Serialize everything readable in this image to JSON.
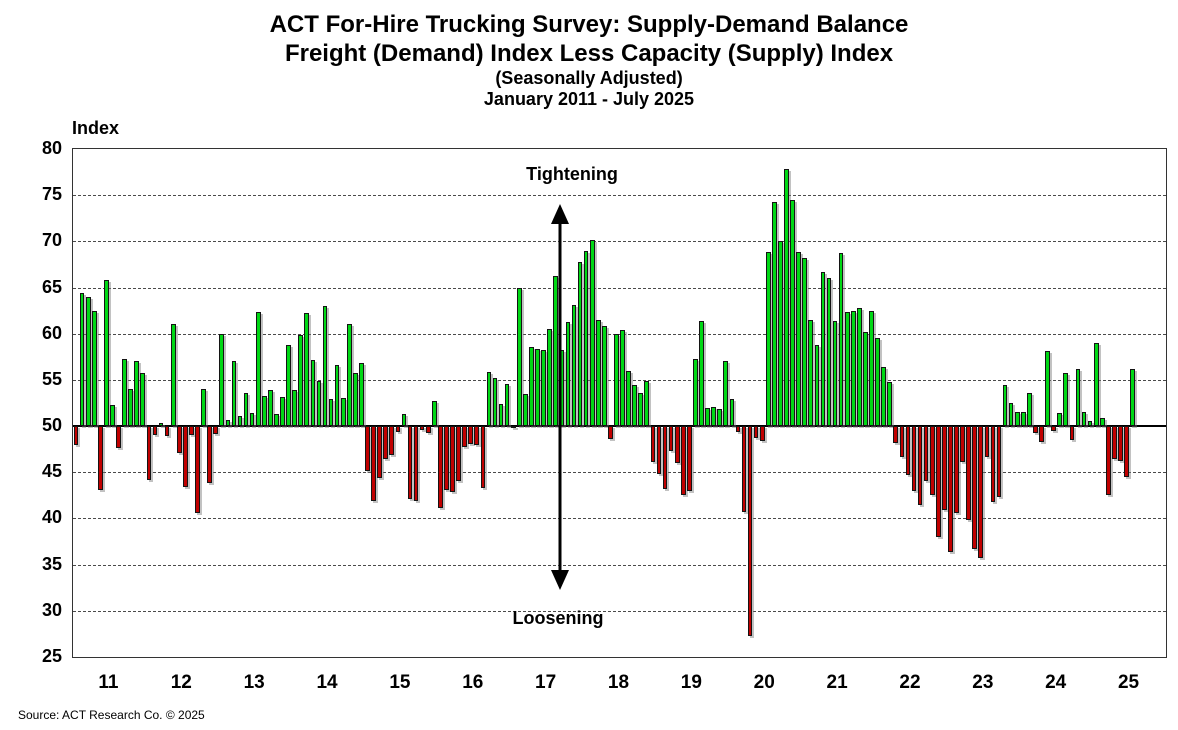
{
  "title": {
    "line1": "ACT For-Hire Trucking Survey: Supply-Demand Balance",
    "line2": "Freight (Demand) Index Less Capacity (Supply) Index",
    "line3": "(Seasonally Adjusted)",
    "line4": "January 2011 - July 2025"
  },
  "index_label": "Index",
  "annotations": {
    "tightening": "Tightening",
    "loosening": "Loosening"
  },
  "source_text": "Source: ACT Research Co. © 2025",
  "chart_data": {
    "type": "bar",
    "title": "ACT For-Hire Trucking Survey: Supply-Demand Balance",
    "subtitle": "Freight (Demand) Index Less Capacity (Supply) Index, Seasonally Adjusted",
    "period": "January 2011 - July 2025",
    "frequency": "monthly",
    "start_month": "2011-01",
    "end_month": "2025-07",
    "baseline": 50,
    "ylim": [
      25,
      80
    ],
    "y_ticks": [
      80,
      75,
      70,
      65,
      60,
      55,
      50,
      45,
      40,
      35,
      30,
      25
    ],
    "x_axis_years": [
      "11",
      "12",
      "13",
      "14",
      "15",
      "16",
      "17",
      "18",
      "19",
      "20",
      "21",
      "22",
      "23",
      "24",
      "25"
    ],
    "x_axis_total_months": 180,
    "grid": "dashed horizontal",
    "positive_color": "#00d815",
    "negative_color": "#c00000",
    "bar_border_color": "#141414",
    "values": [
      48.0,
      64.4,
      64.0,
      62.5,
      43.1,
      65.8,
      52.3,
      47.6,
      57.3,
      54.0,
      57.1,
      55.8,
      44.2,
      49.0,
      50.3,
      48.9,
      61.0,
      47.1,
      43.4,
      49.0,
      40.6,
      54.0,
      43.8,
      49.1,
      60.0,
      50.7,
      57.0,
      51.1,
      53.6,
      51.4,
      62.4,
      53.3,
      53.9,
      51.3,
      53.2,
      58.8,
      53.9,
      59.9,
      62.2,
      57.2,
      54.9,
      63.0,
      52.9,
      56.6,
      53.0,
      61.1,
      55.8,
      56.8,
      45.1,
      41.9,
      44.4,
      46.4,
      46.9,
      49.4,
      51.3,
      42.1,
      41.9,
      49.6,
      49.3,
      52.7,
      41.1,
      43.1,
      42.9,
      44.0,
      47.7,
      48.1,
      47.9,
      43.3,
      55.9,
      55.2,
      52.4,
      54.6,
      49.8,
      65.0,
      53.5,
      58.6,
      58.4,
      58.2,
      60.5,
      66.2,
      58.2,
      61.3,
      63.1,
      67.8,
      69.0,
      70.2,
      61.5,
      60.8,
      48.6,
      60.0,
      60.4,
      56.0,
      54.5,
      53.6,
      54.9,
      46.1,
      44.8,
      43.2,
      47.3,
      46.0,
      42.5,
      43.0,
      57.3,
      61.4,
      52.0,
      52.1,
      51.9,
      57.0,
      52.9,
      49.4,
      40.7,
      27.3,
      48.7,
      48.4,
      68.8,
      74.3,
      70.0,
      77.8,
      74.5,
      68.8,
      68.2,
      61.5,
      58.8,
      66.7,
      66.0,
      61.4,
      68.7,
      62.3,
      62.5,
      62.8,
      60.2,
      62.5,
      59.5,
      56.4,
      54.8,
      48.2,
      46.6,
      44.7,
      43.0,
      41.5,
      44.0,
      42.5,
      38.0,
      40.9,
      36.4,
      40.6,
      46.1,
      39.8,
      36.7,
      35.7,
      46.7,
      41.8,
      42.3,
      54.5,
      52.5,
      51.5,
      51.5,
      53.6,
      49.3,
      48.3,
      58.1,
      49.5,
      51.4,
      55.8,
      48.5,
      56.2,
      51.5,
      50.6,
      59.0,
      50.9,
      42.5,
      46.4,
      46.2,
      44.5,
      56.2
    ]
  }
}
